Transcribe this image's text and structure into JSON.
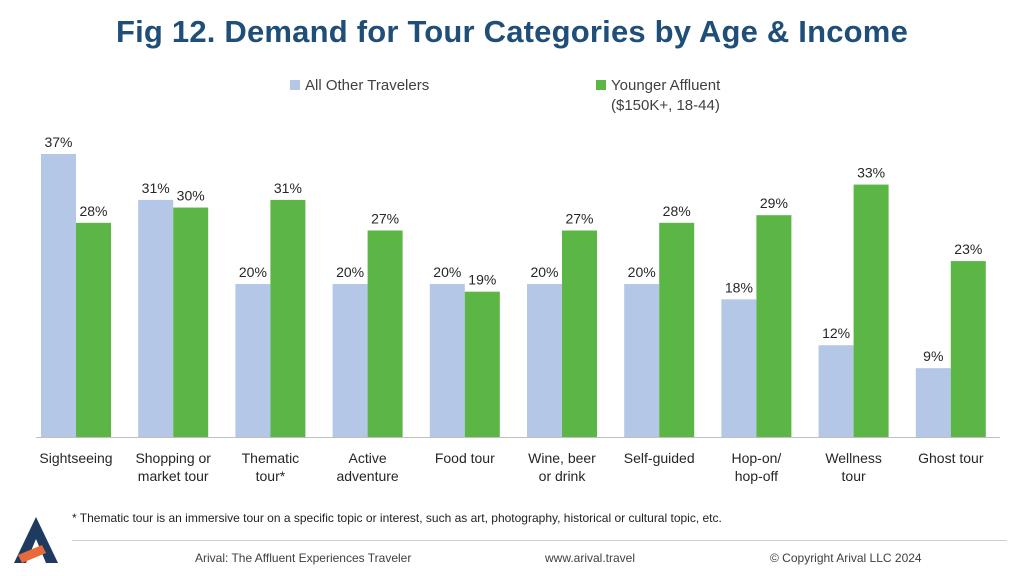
{
  "title": "Fig 12. Demand for Tour Categories by Age & Income",
  "colors": {
    "all_other": "#b4c7e7",
    "younger_affluent": "#5bb646",
    "title": "#1f4e79",
    "logo_dark": "#1f3a5f",
    "logo_accent": "#e86a3a"
  },
  "legend": {
    "placement": "top-center",
    "all_other_label": "All Other Travelers",
    "younger_affluent_label": "Younger Affluent",
    "younger_affluent_sub": "($150K+, 18-44)"
  },
  "chart_data": {
    "type": "bar",
    "categories": [
      [
        "Sightseeing"
      ],
      [
        "Shopping or",
        "market tour"
      ],
      [
        "Thematic",
        "tour*"
      ],
      [
        "Active",
        "adventure"
      ],
      [
        "Food tour"
      ],
      [
        "Wine, beer",
        "or drink"
      ],
      [
        "Self-guided"
      ],
      [
        "Hop-on/",
        "hop-off"
      ],
      [
        "Wellness",
        "tour"
      ],
      [
        "Ghost tour"
      ]
    ],
    "series": [
      {
        "name": "All Other Travelers",
        "values": [
          37,
          31,
          20,
          20,
          20,
          20,
          20,
          18,
          12,
          9
        ]
      },
      {
        "name": "Younger Affluent ($150K+, 18-44)",
        "values": [
          28,
          30,
          31,
          27,
          19,
          27,
          28,
          29,
          33,
          23
        ]
      }
    ],
    "value_labels": [
      [
        "37%",
        "31%",
        "20%",
        "20%",
        "20%",
        "20%",
        "20%",
        "18%",
        "12%",
        "9%"
      ],
      [
        "28%",
        "30%",
        "31%",
        "27%",
        "19%",
        "27%",
        "28%",
        "29%",
        "33%",
        "23%"
      ]
    ],
    "ylim": [
      0,
      37
    ],
    "grid": false
  },
  "footnote": "* Thematic tour is an immersive tour on a specific topic or interest, such as art, photography, historical or cultural topic, etc.",
  "footer": {
    "left": "Arival: The  Affluent Experiences Traveler",
    "center": "www.arival.travel",
    "right": "© Copyright Arival LLC 2024"
  },
  "logo_icon": "arival-logo-icon"
}
